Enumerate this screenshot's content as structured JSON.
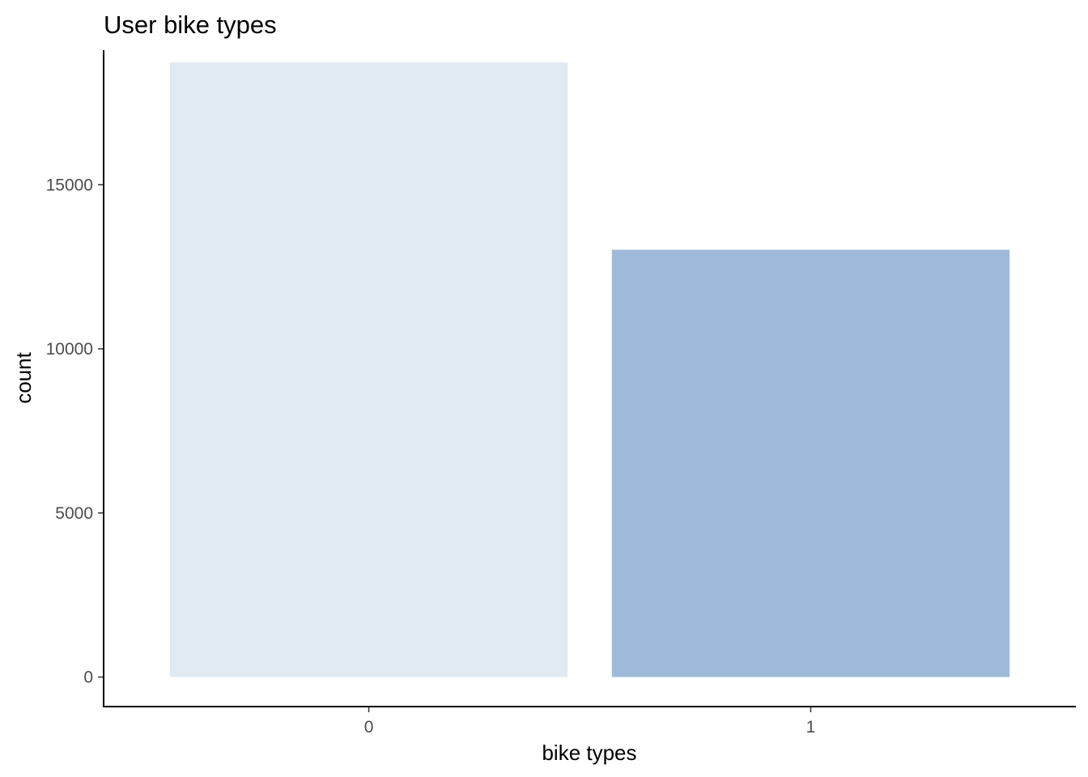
{
  "chart_data": {
    "type": "bar",
    "title": "User bike types",
    "xlabel": "bike types",
    "ylabel": "count",
    "categories": [
      "0",
      "1"
    ],
    "values": [
      18730,
      13020
    ],
    "ylim": [
      -900,
      19100
    ],
    "yticks": [
      0,
      5000,
      10000,
      15000
    ],
    "ytick_labels": [
      "0",
      "5000",
      "10000",
      "15000"
    ],
    "bar_colors": [
      "#dfeaf3",
      "#9fbad8"
    ],
    "grid": false,
    "legend": "none"
  }
}
